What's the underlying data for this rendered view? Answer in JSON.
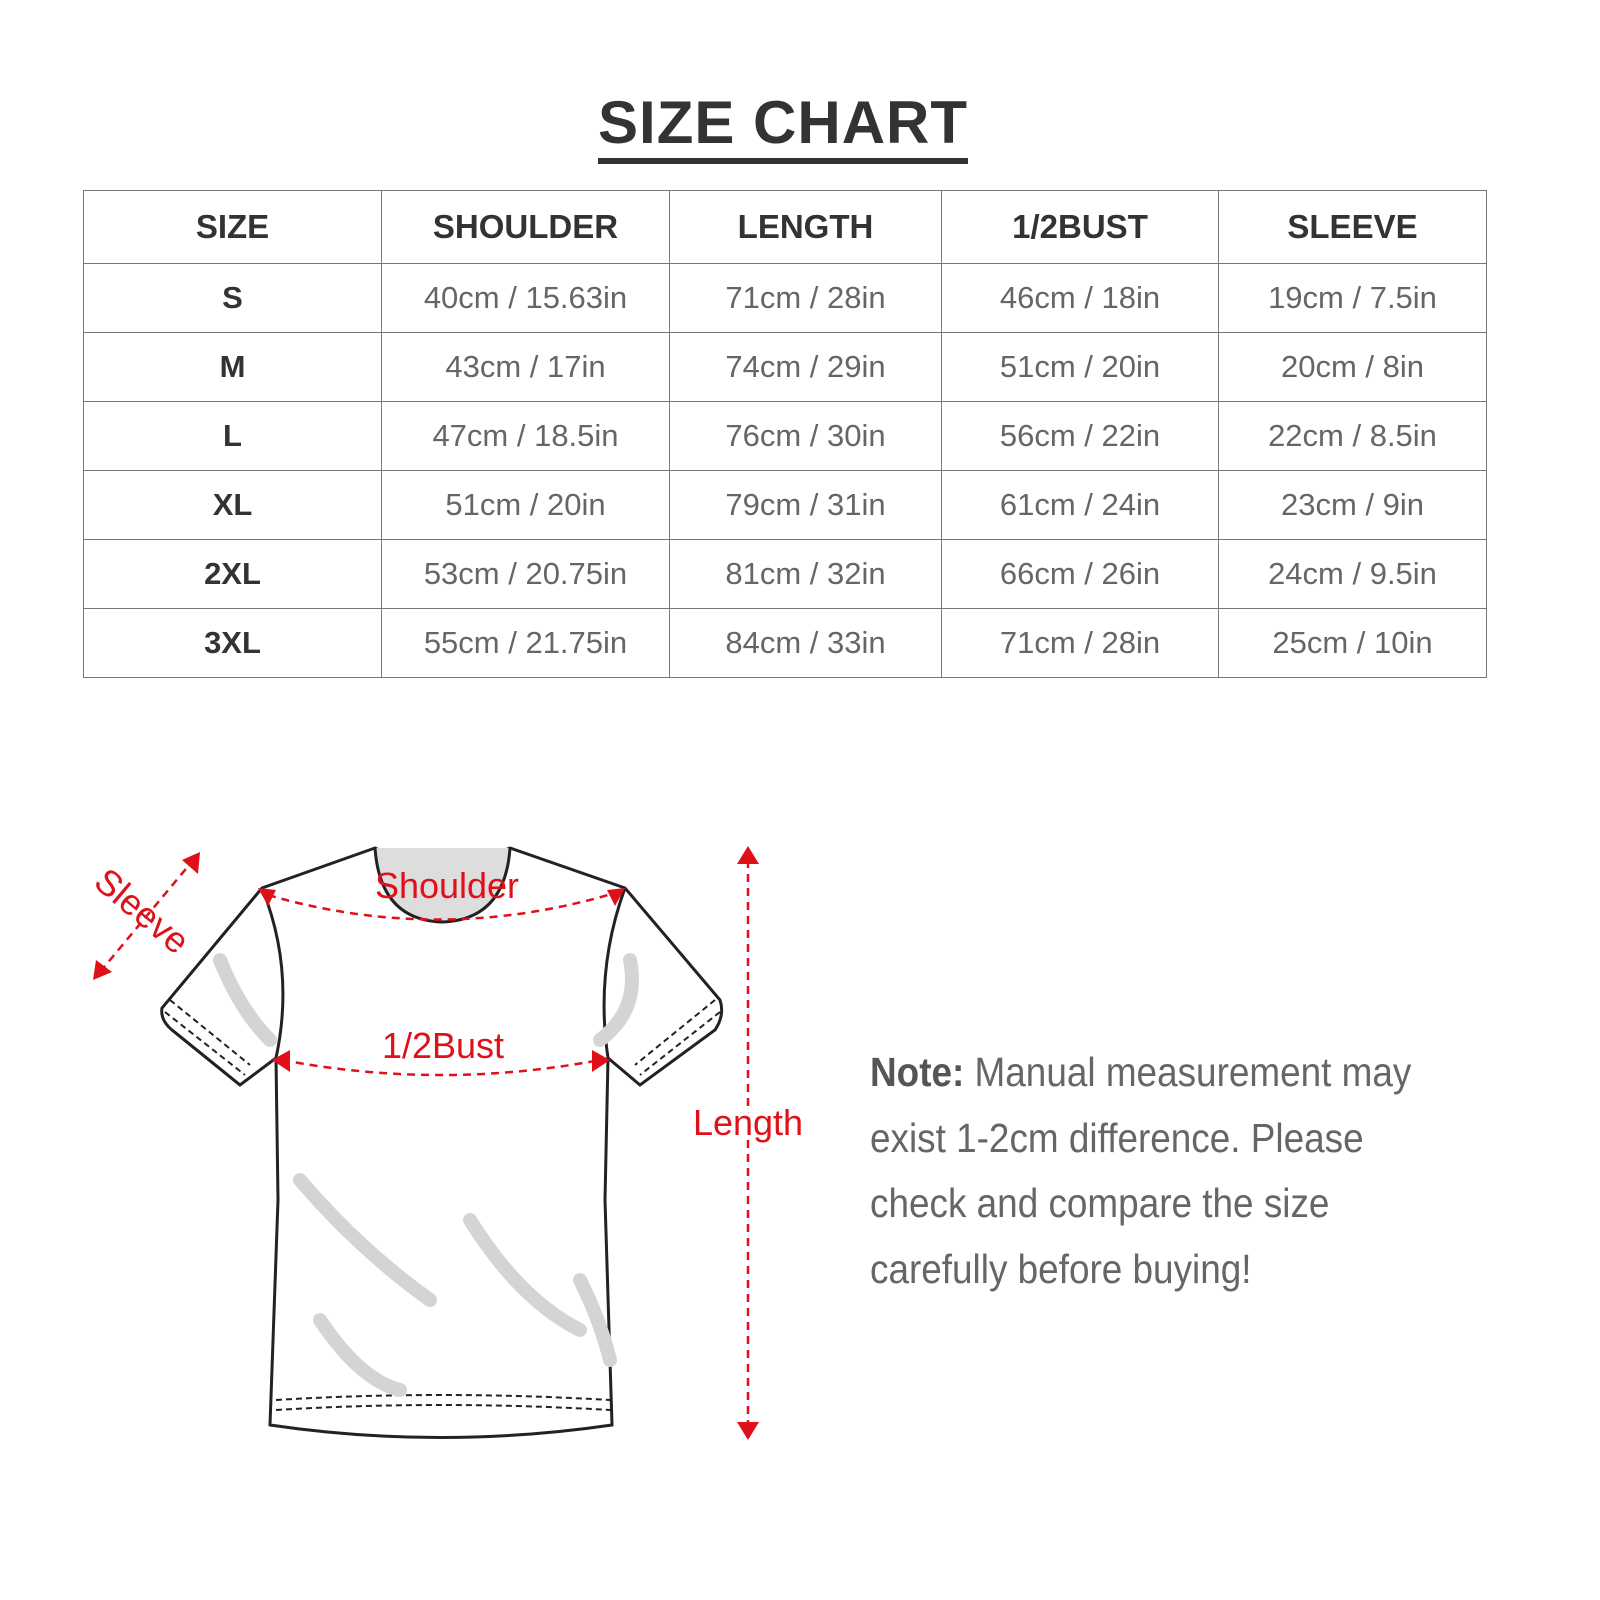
{
  "title": "SIZE CHART",
  "table": {
    "headers": [
      "SIZE",
      "SHOULDER",
      "LENGTH",
      "1/2BUST",
      "SLEEVE"
    ],
    "rows": [
      [
        "S",
        "40cm / 15.63in",
        "71cm / 28in",
        "46cm / 18in",
        "19cm / 7.5in"
      ],
      [
        "M",
        "43cm / 17in",
        "74cm / 29in",
        "51cm / 20in",
        "20cm / 8in"
      ],
      [
        "L",
        "47cm / 18.5in",
        "76cm / 30in",
        "56cm / 22in",
        "22cm / 8.5in"
      ],
      [
        "XL",
        "51cm / 20in",
        "79cm / 31in",
        "61cm / 24in",
        "23cm / 9in"
      ],
      [
        "2XL",
        "53cm / 20.75in",
        "81cm / 32in",
        "66cm / 26in",
        "24cm / 9.5in"
      ],
      [
        "3XL",
        "55cm / 21.75in",
        "84cm / 33in",
        "71cm / 28in",
        "25cm / 10in"
      ]
    ]
  },
  "diagram": {
    "labels": {
      "sleeve": "Sleeve",
      "shoulder": "Shoulder",
      "bust": "1/2Bust",
      "length": "Length"
    },
    "accent_color": "#e0101a"
  },
  "note": {
    "label": "Note:",
    "text": " Manual measurement may exist 1-2cm difference. Please check and compare the size carefully before buying!"
  }
}
